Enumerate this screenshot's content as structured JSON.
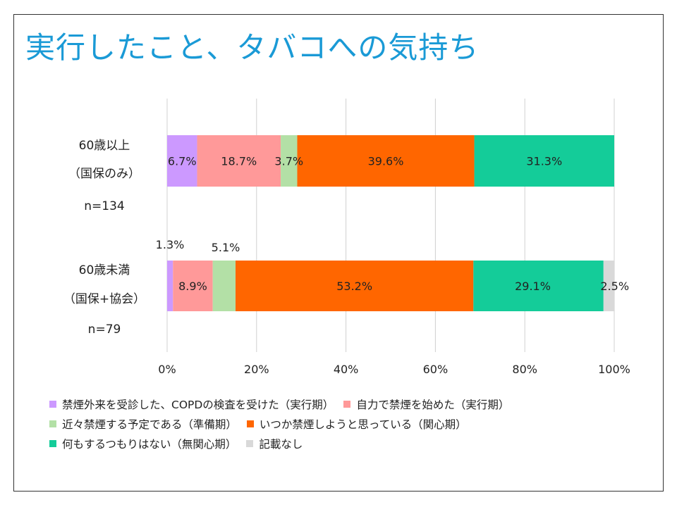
{
  "title": "実行したこと、タバコへの気持ち",
  "chart_data": {
    "type": "bar",
    "orientation": "horizontal",
    "stacked": true,
    "categories": [
      {
        "label_lines": [
          "60歳以上",
          "（国保のみ）"
        ],
        "n_label": "n=134"
      },
      {
        "label_lines": [
          "60歳未満",
          "（国保+協会）"
        ],
        "n_label": "n=79"
      }
    ],
    "series": [
      {
        "name": "禁煙外来を受診した、COPDの検査を受けた（実行期）",
        "color": "#cc99ff",
        "values": [
          6.7,
          1.3
        ],
        "labels": [
          "6.7%",
          "1.3%"
        ]
      },
      {
        "name": "自力で禁煙を始めた（実行期）",
        "color": "#ff9999",
        "values": [
          18.7,
          8.9
        ],
        "labels": [
          "18.7%",
          "8.9%"
        ]
      },
      {
        "name": "近々禁煙する予定である（準備期）",
        "color": "#b3e0a6",
        "values": [
          3.7,
          5.1
        ],
        "labels": [
          "3.7%",
          "5.1%"
        ]
      },
      {
        "name": "いつか禁煙しようと思っている（関心期）",
        "color": "#ff6600",
        "values": [
          39.6,
          53.2
        ],
        "labels": [
          "39.6%",
          "53.2%"
        ]
      },
      {
        "name": "何もするつもりはない（無関心期）",
        "color": "#14cc99",
        "values": [
          31.3,
          29.1
        ],
        "labels": [
          "31.3%",
          "29.1%"
        ]
      },
      {
        "name": "記載なし",
        "color": "#d9d9d9",
        "values": [
          0,
          2.5
        ],
        "labels": [
          "",
          "2.5%"
        ]
      }
    ],
    "xlim": [
      0,
      100
    ],
    "xticks": [
      0,
      20,
      40,
      60,
      80,
      100
    ],
    "xtick_labels": [
      "0%",
      "20%",
      "40%",
      "60%",
      "80%",
      "100%"
    ],
    "grid": true,
    "legend": "bottom"
  }
}
